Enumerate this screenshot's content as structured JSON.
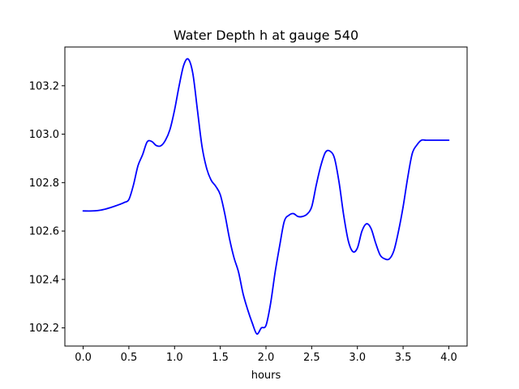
{
  "chart_data": {
    "type": "line",
    "title": "Water Depth h at gauge 540",
    "xlabel": "hours",
    "ylabel": "",
    "xlim": [
      -0.2,
      4.2
    ],
    "ylim": [
      102.125,
      103.36
    ],
    "xticks": [
      {
        "value": 0.0,
        "label": "0.0"
      },
      {
        "value": 0.5,
        "label": "0.5"
      },
      {
        "value": 1.0,
        "label": "1.0"
      },
      {
        "value": 1.5,
        "label": "1.5"
      },
      {
        "value": 2.0,
        "label": "2.0"
      },
      {
        "value": 2.5,
        "label": "2.5"
      },
      {
        "value": 3.0,
        "label": "3.0"
      },
      {
        "value": 3.5,
        "label": "3.5"
      },
      {
        "value": 4.0,
        "label": "4.0"
      }
    ],
    "yticks": [
      {
        "value": 102.2,
        "label": "102.2"
      },
      {
        "value": 102.4,
        "label": "102.4"
      },
      {
        "value": 102.6,
        "label": "102.6"
      },
      {
        "value": 102.8,
        "label": "102.8"
      },
      {
        "value": 103.0,
        "label": "103.0"
      },
      {
        "value": 103.2,
        "label": "103.2"
      }
    ],
    "grid": false,
    "series": [
      {
        "color": "#0000ff",
        "x": [
          0.0,
          0.1,
          0.2,
          0.3,
          0.4,
          0.45,
          0.5,
          0.55,
          0.6,
          0.65,
          0.7,
          0.75,
          0.8,
          0.85,
          0.9,
          0.95,
          1.0,
          1.05,
          1.1,
          1.15,
          1.2,
          1.25,
          1.3,
          1.35,
          1.4,
          1.45,
          1.5,
          1.55,
          1.6,
          1.65,
          1.7,
          1.75,
          1.8,
          1.85,
          1.9,
          1.95,
          2.0,
          2.05,
          2.1,
          2.15,
          2.2,
          2.25,
          2.3,
          2.35,
          2.4,
          2.45,
          2.5,
          2.55,
          2.6,
          2.65,
          2.7,
          2.75,
          2.8,
          2.85,
          2.9,
          2.95,
          3.0,
          3.05,
          3.1,
          3.15,
          3.2,
          3.25,
          3.3,
          3.35,
          3.4,
          3.45,
          3.5,
          3.55,
          3.6,
          3.65,
          3.7,
          3.75,
          3.8,
          3.85,
          3.9,
          3.95,
          4.0
        ],
        "y": [
          102.683,
          102.683,
          102.687,
          102.697,
          102.71,
          102.718,
          102.73,
          102.79,
          102.87,
          102.915,
          102.968,
          102.97,
          102.953,
          102.952,
          102.975,
          103.02,
          103.1,
          103.2,
          103.285,
          103.31,
          103.25,
          103.1,
          102.95,
          102.86,
          102.81,
          102.785,
          102.75,
          102.67,
          102.57,
          102.49,
          102.43,
          102.34,
          102.275,
          102.22,
          102.175,
          102.2,
          102.21,
          102.3,
          102.43,
          102.54,
          102.64,
          102.665,
          102.672,
          102.66,
          102.66,
          102.67,
          102.7,
          102.79,
          102.87,
          102.925,
          102.93,
          102.9,
          102.8,
          102.665,
          102.56,
          102.515,
          102.53,
          102.6,
          102.63,
          102.61,
          102.55,
          102.5,
          102.485,
          102.485,
          102.52,
          102.6,
          102.7,
          102.82,
          102.92,
          102.955,
          102.975,
          102.975,
          102.975,
          102.975,
          102.975,
          102.975,
          102.975
        ]
      }
    ]
  }
}
